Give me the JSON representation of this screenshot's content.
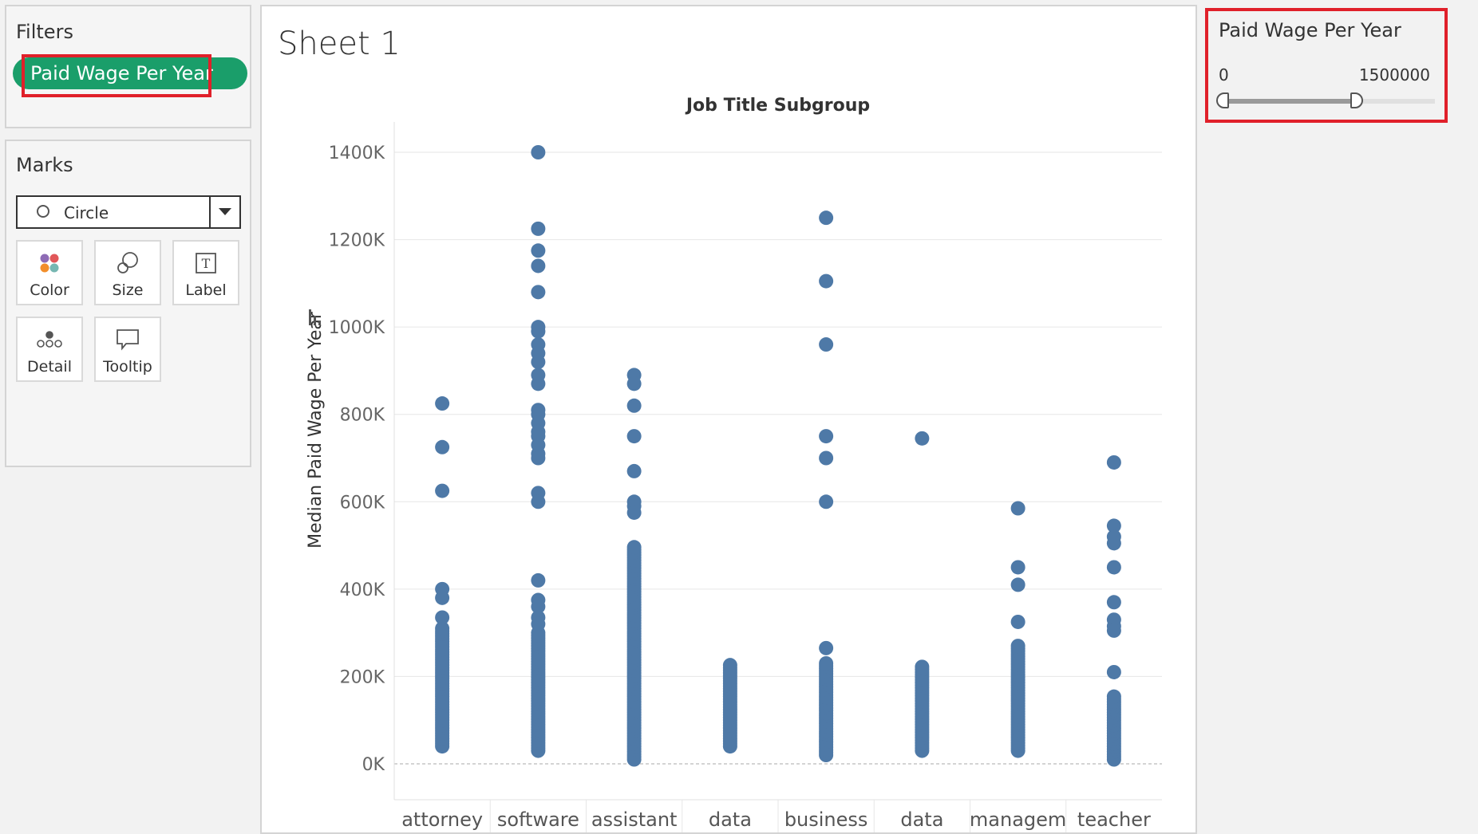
{
  "filters": {
    "title": "Filters",
    "pill_label": "Paid Wage Per Year"
  },
  "marks": {
    "title": "Marks",
    "mark_type": "Circle",
    "buttons": {
      "color": "Color",
      "size": "Size",
      "label": "Label",
      "detail": "Detail",
      "tooltip": "Tooltip"
    }
  },
  "sheet": {
    "title": "Sheet 1"
  },
  "slider": {
    "title": "Paid Wage Per Year",
    "min_label": "0",
    "max_label": "1500000",
    "range_low": 0,
    "range_high": 1500000,
    "selected_fraction": 0.62
  },
  "colors": {
    "accent": "#1a9e6a",
    "highlight": "#e0202a",
    "mark": "#4e79a7"
  },
  "chart_data": {
    "type": "scatter",
    "title": "Job Title Subgroup",
    "ylabel": "Median Paid Wage Per Year",
    "categories": [
      "attorney",
      "software",
      "assistant",
      "data",
      "business",
      "data",
      "managem",
      "teacher"
    ],
    "y_ticks": [
      "0K",
      "200K",
      "400K",
      "600K",
      "800K",
      "1000K",
      "1200K",
      "1400K"
    ],
    "ylim": [
      0,
      1400000
    ],
    "grid": true,
    "series": [
      {
        "category": "attorney",
        "outliers": [
          825000,
          725000,
          625000,
          400000,
          380000,
          335000
        ],
        "dense_range": [
          40000,
          310000
        ]
      },
      {
        "category": "software",
        "outliers": [
          1400000,
          1225000,
          1175000,
          1140000,
          1080000,
          1000000,
          990000,
          960000,
          940000,
          920000,
          890000,
          870000,
          810000,
          800000,
          780000,
          760000,
          750000,
          730000,
          710000,
          700000,
          620000,
          600000,
          420000,
          375000,
          360000,
          335000,
          320000
        ],
        "dense_range": [
          30000,
          300000
        ]
      },
      {
        "category": "assistant",
        "outliers": [
          890000,
          870000,
          820000,
          750000,
          670000,
          600000,
          590000,
          575000
        ],
        "dense_range": [
          10000,
          500000
        ]
      },
      {
        "category": "data",
        "outliers": [],
        "dense_range": [
          40000,
          230000
        ]
      },
      {
        "category": "business",
        "outliers": [
          1250000,
          1105000,
          960000,
          750000,
          700000,
          600000,
          265000
        ],
        "dense_range": [
          20000,
          235000
        ]
      },
      {
        "category": "data",
        "outliers": [
          745000
        ],
        "dense_range": [
          30000,
          225000
        ]
      },
      {
        "category": "managem",
        "outliers": [
          585000,
          450000,
          410000,
          325000
        ],
        "dense_range": [
          30000,
          270000
        ]
      },
      {
        "category": "teacher",
        "outliers": [
          690000,
          545000,
          520000,
          505000,
          450000,
          370000,
          330000,
          315000,
          305000,
          210000
        ],
        "dense_range": [
          10000,
          155000
        ]
      }
    ]
  }
}
